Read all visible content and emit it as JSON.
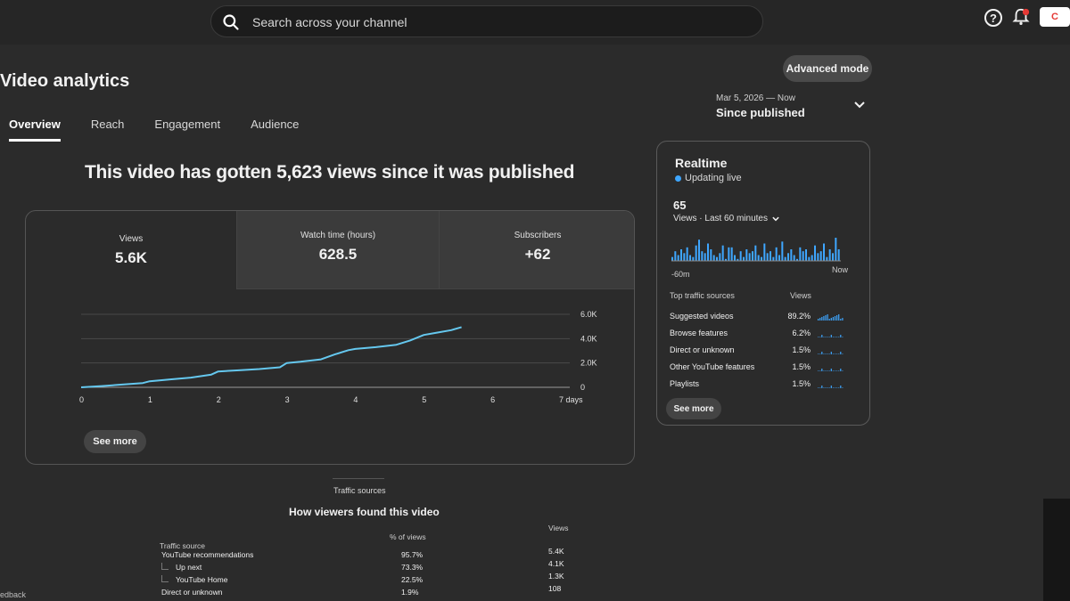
{
  "search": {
    "placeholder": "Search across your channel"
  },
  "header": {
    "help_icon": "?",
    "create_label": "C"
  },
  "page": {
    "title": "Video analytics",
    "advanced_mode": "Advanced mode",
    "date_range": "Mar 5, 2026 — Now",
    "date_label": "Since published"
  },
  "tabs": [
    {
      "label": "Overview",
      "active": true
    },
    {
      "label": "Reach"
    },
    {
      "label": "Engagement"
    },
    {
      "label": "Audience"
    }
  ],
  "headline": "This video has gotten 5,623 views since it was published",
  "metrics": [
    {
      "label": "Views",
      "value": "5.6K"
    },
    {
      "label": "Watch time (hours)",
      "value": "628.5"
    },
    {
      "label": "Subscribers",
      "value": "+62"
    }
  ],
  "chart_data": {
    "type": "line",
    "xlabel": "",
    "ylabel": "",
    "x_ticks": [
      "0",
      "1",
      "2",
      "3",
      "4",
      "5",
      "6",
      "7 days"
    ],
    "y_ticks": [
      "0",
      "2.0K",
      "4.0K",
      "6.0K"
    ],
    "ylim": [
      0,
      6000
    ],
    "xlim": [
      0,
      7
    ],
    "series": [
      {
        "x": [
          0,
          0.3,
          0.6,
          0.9,
          1.0,
          1.3,
          1.6,
          1.9,
          2.0,
          2.3,
          2.6,
          2.9,
          3.0,
          3.2,
          3.5,
          3.7,
          3.9,
          4.0,
          4.3,
          4.6,
          4.8,
          5.0,
          5.2,
          5.4,
          5.55
        ],
        "y": [
          0,
          100,
          230,
          350,
          500,
          650,
          800,
          1050,
          1300,
          1400,
          1500,
          1650,
          2000,
          2100,
          2300,
          2700,
          3050,
          3150,
          3300,
          3500,
          3850,
          4300,
          4500,
          4700,
          4950
        ]
      }
    ]
  },
  "see_more": "See more",
  "realtime": {
    "title": "Realtime",
    "status": "Updating live",
    "count": "65",
    "subtitle": "Views · Last 60 minutes",
    "left_label": "-60m",
    "right_label": "Now",
    "spark": [
      2,
      5,
      3,
      6,
      4,
      7,
      3,
      2,
      8,
      11,
      5,
      4,
      9,
      6,
      3,
      2,
      4,
      8,
      1,
      7,
      7,
      3,
      1,
      5,
      2,
      6,
      4,
      5,
      8,
      3,
      2,
      9,
      4,
      5,
      2,
      7,
      3,
      10,
      2,
      4,
      6,
      3,
      1,
      7,
      5,
      6,
      2,
      3,
      8,
      4,
      5,
      9,
      2,
      6,
      4,
      12,
      6
    ],
    "sources_header": "Top traffic sources",
    "views_header": "Views",
    "sources": [
      {
        "name": "Suggested videos",
        "pct": "89.2%"
      },
      {
        "name": "Browse features",
        "pct": "6.2%"
      },
      {
        "name": "Direct or unknown",
        "pct": "1.5%"
      },
      {
        "name": "Other YouTube features",
        "pct": "1.5%"
      },
      {
        "name": "Playlists",
        "pct": "1.5%"
      }
    ]
  },
  "traffic": {
    "section_label": "Traffic sources",
    "title": "How viewers found this video",
    "col_source": "Traffic source",
    "col_pct": "% of views",
    "col_views": "Views",
    "rows": [
      {
        "source": "YouTube recommendations",
        "pct": "95.7%",
        "views": "5.4K",
        "level": 0
      },
      {
        "source": "Up next",
        "pct": "73.3%",
        "views": "4.1K",
        "level": 1
      },
      {
        "source": "YouTube Home",
        "pct": "22.5%",
        "views": "1.3K",
        "level": 1
      },
      {
        "source": "Direct or unknown",
        "pct": "1.9%",
        "views": "108",
        "level": 0
      }
    ]
  },
  "footer": {
    "feedback": "edback"
  },
  "colors": {
    "accent": "#3ea6ff",
    "line": "#65c8ef"
  }
}
